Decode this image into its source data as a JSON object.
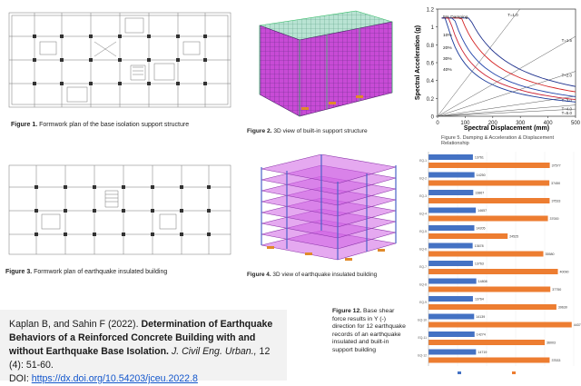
{
  "figure1": {
    "label": "Figure 1.",
    "text": "Formwork plan of the base isolation support structure"
  },
  "figure2": {
    "label": "Figure 2.",
    "text": "3D view of built-in support structure"
  },
  "figure3": {
    "label": "Figure 3.",
    "text": "Formwork plan of earthquake insulated building"
  },
  "figure4": {
    "label": "Figure 4.",
    "text": "3D view of earthquake insulated building"
  },
  "figure5": {
    "label": "Figure 5.",
    "text": "Damping & Acceleration & Displacement Relationship"
  },
  "figure12": {
    "label": "Figure 12.",
    "text": "Base shear force results in Y (-) direction for 12 earthquake records of an earthquake insulated and built-in support building"
  },
  "citation": {
    "authors": "Kaplan B, and Sahin F (2022).",
    "title": "Determination of Earthquake Behaviors of a Reinforced Concrete Building with and without Earthquake Base Isolation.",
    "journal": "J. Civil Eng. Urban.,",
    "volume": "12 (4): 51-60.",
    "doi_prefix": "DOI:",
    "doi_url": "https://dx.doi.org/10.54203/jceu.2022.8"
  },
  "spectrum_chart": {
    "chart_data": {
      "type": "line",
      "xlabel": "Spectral Displacement (mm)",
      "ylabel": "Spectral Acceleration (g)",
      "xlim": [
        0,
        500
      ],
      "ylim": [
        0,
        1.2
      ],
      "x_ticks": [
        "0",
        "100",
        "200",
        "300",
        "400",
        "500"
      ],
      "y_ticks": [
        "0",
        "0.2",
        "0.4",
        "0.6",
        "0.8",
        "1",
        "1.2"
      ],
      "damping_labels": [
        "5% Damping",
        "10%",
        "20%",
        "30%",
        "40%"
      ],
      "period_labels": [
        "T=1.0",
        "T=1.5",
        "T=2.0",
        "T=3.0",
        "T=4.0",
        "T=5.0"
      ],
      "curve_colors": [
        "#1c2f8c",
        "#d42020",
        "#2244aa",
        "#cc2233",
        "#1a3a9a"
      ]
    }
  },
  "bar_chart": {
    "chart_data": {
      "type": "bar",
      "orientation": "horizontal",
      "categories": [
        "EQ-1",
        "EQ-2",
        "EQ-3",
        "EQ-4",
        "EQ-5",
        "EQ-6",
        "EQ-7",
        "EQ-8",
        "EQ-9",
        "EQ-10",
        "EQ-11",
        "EQ-12"
      ],
      "series": [
        {
          "name": "",
          "values": [
            13761,
            14250,
            13867,
            14657,
            14205,
            13678,
            13763,
            14808,
            13764,
            14139,
            14274,
            14719
          ],
          "labels": [
            "13761",
            "14250",
            "13867",
            "14657",
            "14205",
            "13678",
            "13763",
            "14808",
            "13764",
            "14139",
            "14274",
            "14719"
          ],
          "color": "#4472c4"
        },
        {
          "name": "",
          "values": [
            37577,
            37450,
            37533,
            37000,
            24525,
            35580,
            40090,
            37750,
            39630,
            44373,
            36003,
            37533
          ],
          "labels": [
            "37577",
            "37450",
            "37533",
            "37000",
            "24525",
            "35580",
            "40090",
            "37750",
            "39630",
            "44373",
            "36003",
            "37533"
          ],
          "color": "#ed7d31"
        }
      ],
      "xlim": [
        0,
        45000
      ],
      "legend": "bottom"
    }
  }
}
